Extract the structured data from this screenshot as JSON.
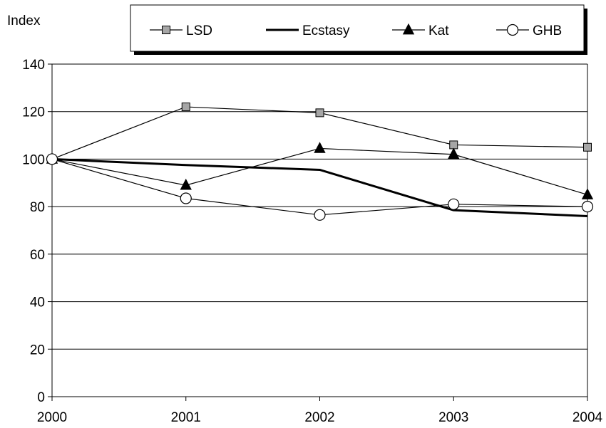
{
  "chart_data": {
    "type": "line",
    "title": "",
    "ylabel": "Index",
    "xlabel": "",
    "x": [
      "2000",
      "2001",
      "2002",
      "2003",
      "2004"
    ],
    "ylim": [
      0,
      140
    ],
    "yticks": [
      0,
      20,
      40,
      60,
      80,
      100,
      120,
      140
    ],
    "grid": "horizontal",
    "legend_placement": "top",
    "series": [
      {
        "name": "LSD",
        "values": [
          100,
          122,
          119.5,
          106,
          105
        ],
        "marker": "square",
        "color": "#a6a6a6",
        "line_color": "#000000"
      },
      {
        "name": "Ecstasy",
        "values": [
          100,
          97.5,
          95.5,
          78.5,
          76
        ],
        "marker": "none",
        "color": "#000000",
        "line_color": "#000000"
      },
      {
        "name": "Kat",
        "values": [
          100,
          89,
          104.5,
          102,
          85
        ],
        "marker": "triangle",
        "color": "#000000",
        "line_color": "#000000"
      },
      {
        "name": "GHB",
        "values": [
          100,
          83.5,
          76.5,
          81,
          80
        ],
        "marker": "circle",
        "color": "#ffffff",
        "line_color": "#000000"
      }
    ]
  }
}
